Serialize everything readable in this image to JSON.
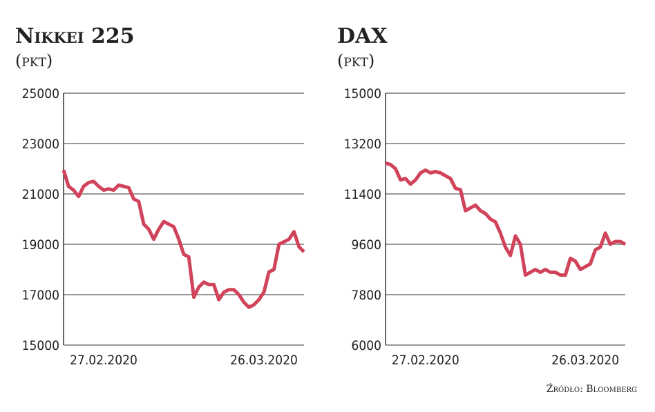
{
  "chart_data": [
    {
      "type": "line",
      "title": "Nikkei 225",
      "subtitle": "(pkt)",
      "categories": [
        null,
        null,
        null,
        null,
        null,
        null,
        null,
        null,
        "27.02.2020",
        null,
        null,
        null,
        null,
        null,
        null,
        null,
        null,
        null,
        null,
        null,
        null,
        null,
        null,
        null,
        null,
        null,
        null,
        null,
        null,
        null,
        null,
        null,
        null,
        null,
        null,
        null,
        null,
        null,
        null,
        null,
        "26.03.2020",
        null,
        null,
        null,
        null,
        null,
        null,
        null,
        null
      ],
      "series": [
        {
          "color": "#d0435b",
          "values": [
            21950,
            21300,
            21150,
            20900,
            21300,
            21450,
            21500,
            21300,
            21150,
            21200,
            21150,
            21350,
            21300,
            21250,
            20800,
            20700,
            19800,
            19600,
            19200,
            19600,
            19900,
            19800,
            19700,
            19200,
            18600,
            18500,
            16900,
            17300,
            17500,
            17400,
            17400,
            16800,
            17100,
            17200,
            17200,
            17000,
            16700,
            16500,
            16600,
            16800,
            17100,
            17900,
            18000,
            19000,
            19100,
            19200,
            19500,
            18900,
            18700
          ]
        }
      ],
      "ylim": [
        15000,
        25000
      ],
      "yticks": [
        15000,
        17000,
        19000,
        21000,
        23000,
        25000
      ],
      "grid": true
    },
    {
      "type": "line",
      "title": "DAX",
      "subtitle": "(pkt)",
      "categories": [
        null,
        null,
        null,
        null,
        null,
        null,
        null,
        null,
        "27.02.2020",
        null,
        null,
        null,
        null,
        null,
        null,
        null,
        null,
        null,
        null,
        null,
        null,
        null,
        null,
        null,
        null,
        null,
        null,
        null,
        null,
        null,
        null,
        null,
        null,
        null,
        null,
        null,
        null,
        null,
        null,
        null,
        "26.03.2020",
        null,
        null,
        null,
        null,
        null,
        null,
        null,
        null
      ],
      "series": [
        {
          "color": "#d0435b",
          "values": [
            12500,
            12450,
            12300,
            11900,
            11950,
            11750,
            11900,
            12150,
            12250,
            12150,
            12200,
            12150,
            12050,
            11950,
            11600,
            11550,
            10800,
            10900,
            11000,
            10800,
            10700,
            10500,
            10400,
            10000,
            9500,
            9200,
            9900,
            9600,
            8500,
            8600,
            8700,
            8600,
            8700,
            8600,
            8600,
            8500,
            8500,
            9100,
            9000,
            8700,
            8800,
            8900,
            9400,
            9500,
            10000,
            9600,
            9700,
            9700,
            9600
          ]
        }
      ],
      "ylim": [
        6000,
        15000
      ],
      "yticks": [
        6000,
        7800,
        9600,
        11400,
        13200,
        15000
      ],
      "grid": true
    }
  ],
  "source": "Źródło: Bloomberg"
}
